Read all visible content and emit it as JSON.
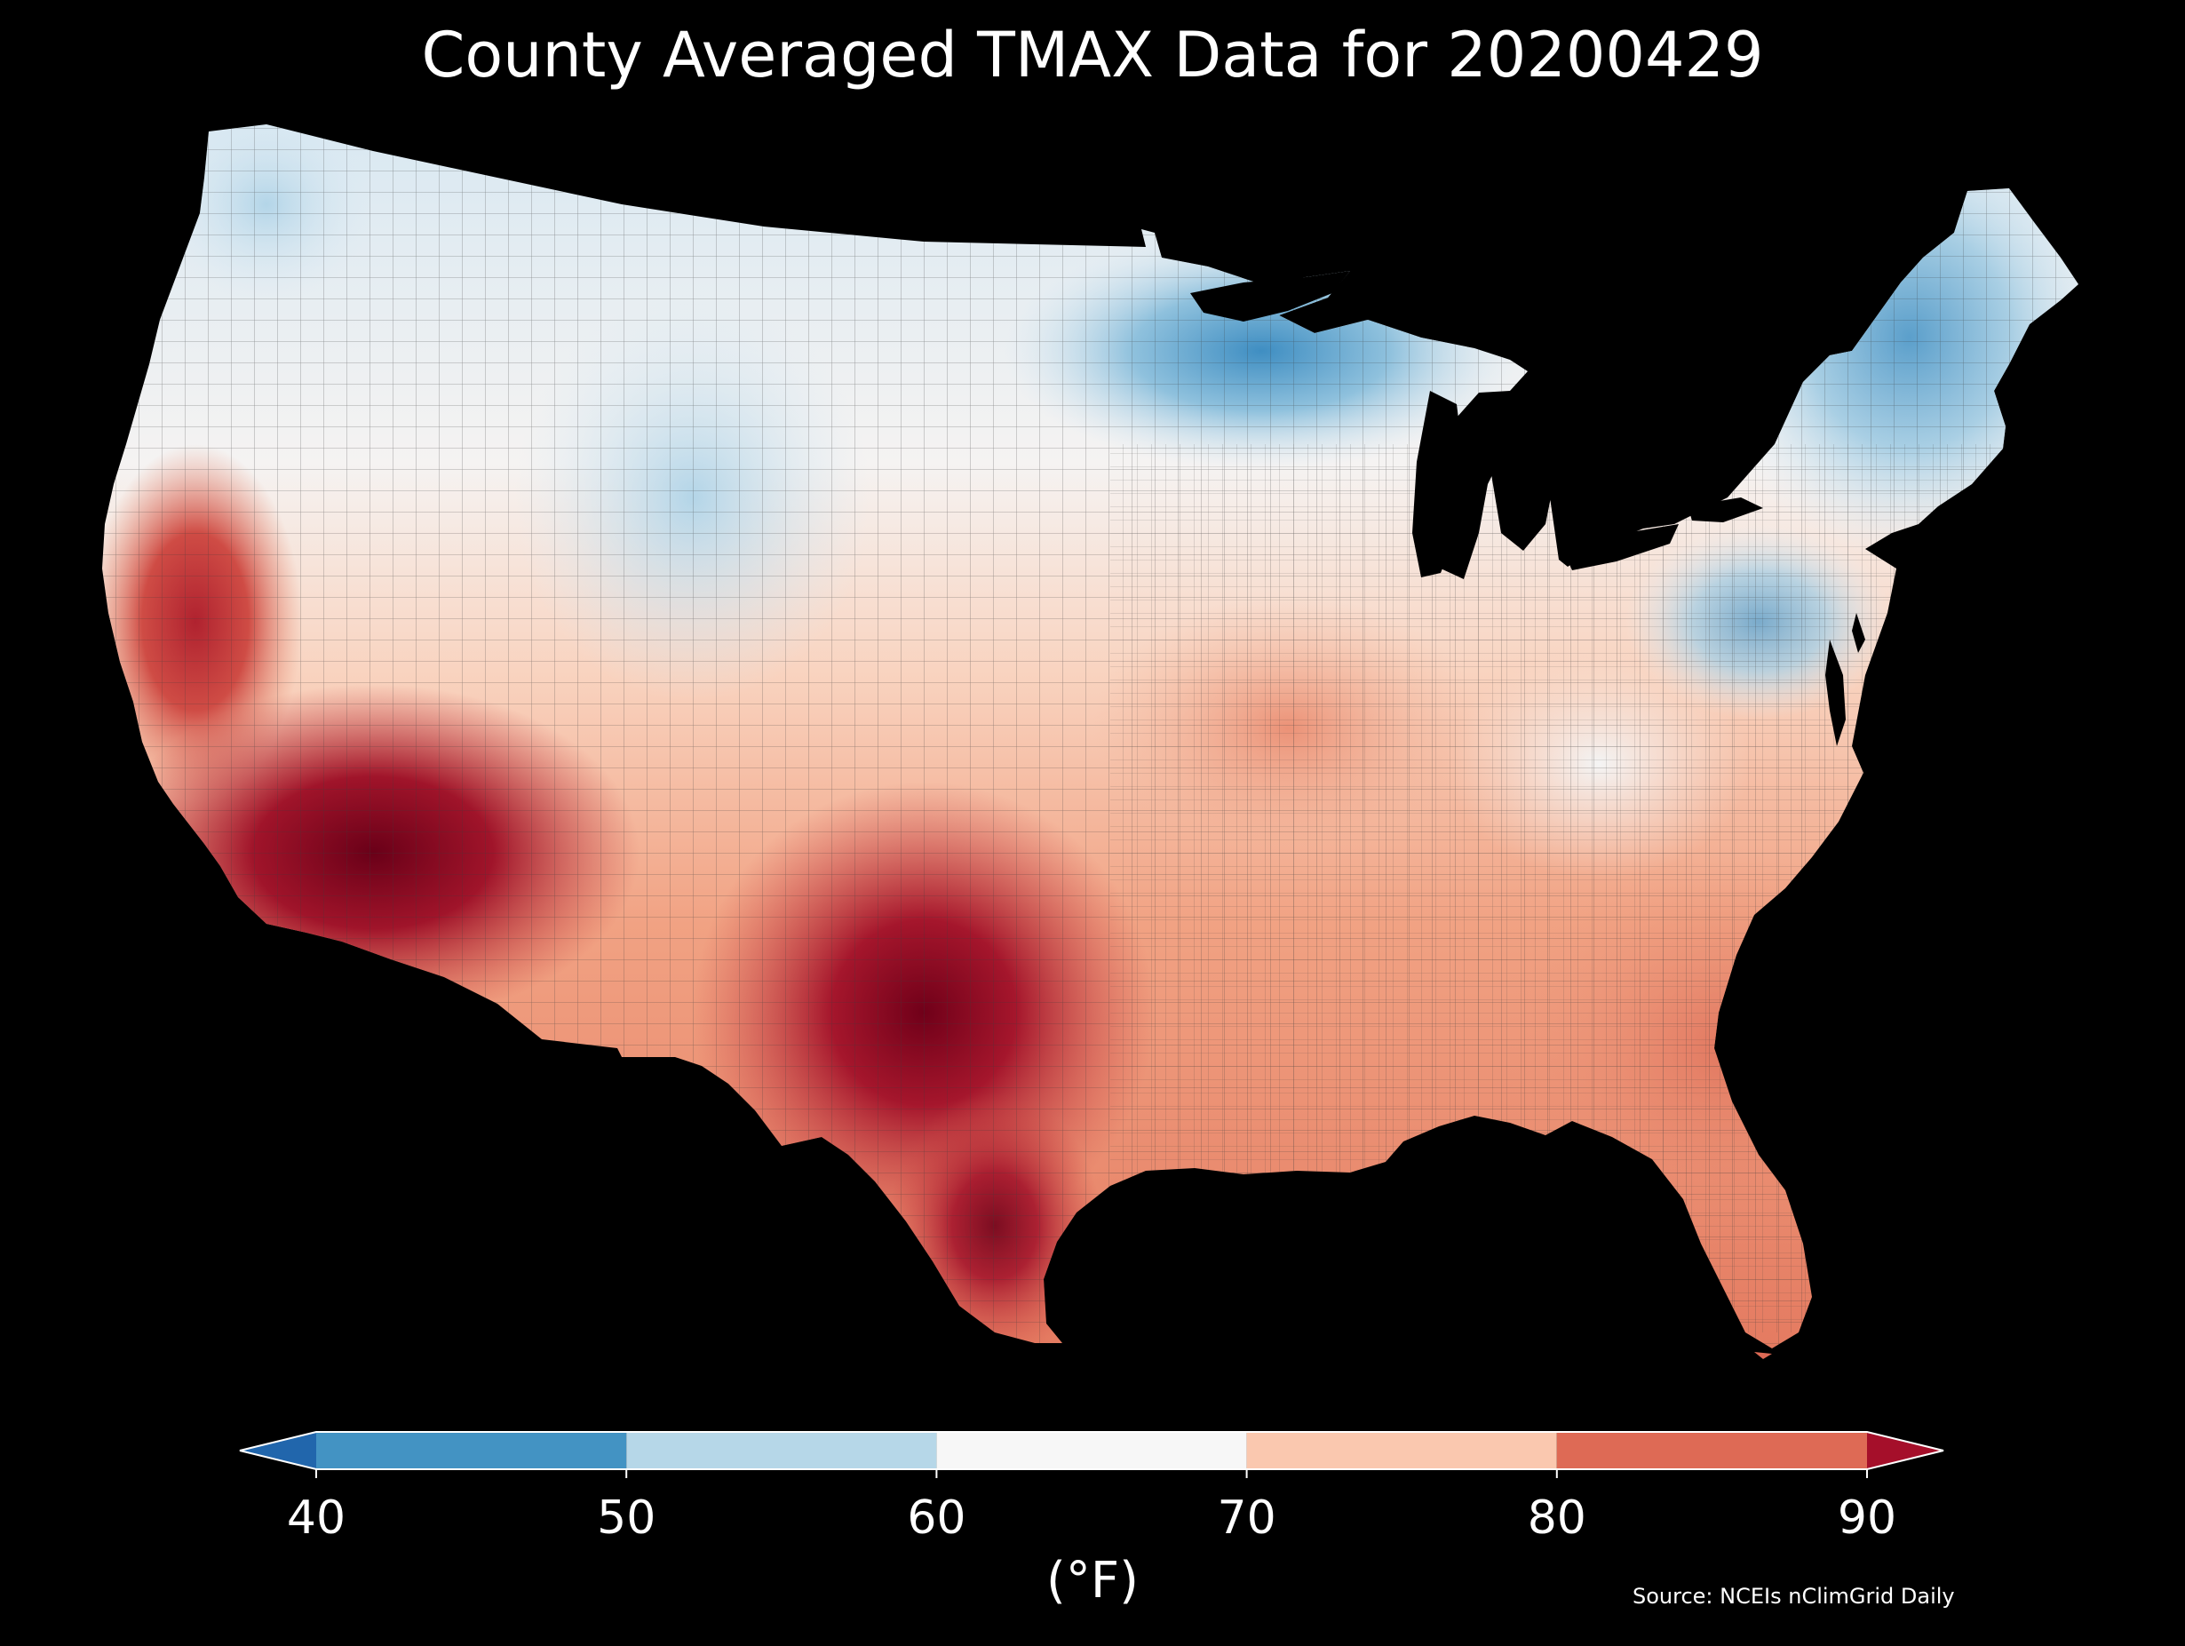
{
  "title": "County Averaged TMAX Data for 20200429",
  "colorbar": {
    "unit_label": "(°F)",
    "ticks": [
      "40",
      "50",
      "60",
      "70",
      "80",
      "90"
    ],
    "bins": [
      {
        "from": 40,
        "to": 50,
        "color": "#4393c3"
      },
      {
        "from": 50,
        "to": 60,
        "color": "#b6d7e8"
      },
      {
        "from": 60,
        "to": 70,
        "color": "#f7f7f7"
      },
      {
        "from": 70,
        "to": 80,
        "color": "#fac8af"
      },
      {
        "from": 80,
        "to": 90,
        "color": "#de6a55"
      }
    ],
    "under_color": "#2166ac",
    "over_color": "#a50f2a"
  },
  "source": "Source: NCEIs nClimGrid Daily",
  "background_color": "#000000",
  "ocean_color": "#000000"
}
